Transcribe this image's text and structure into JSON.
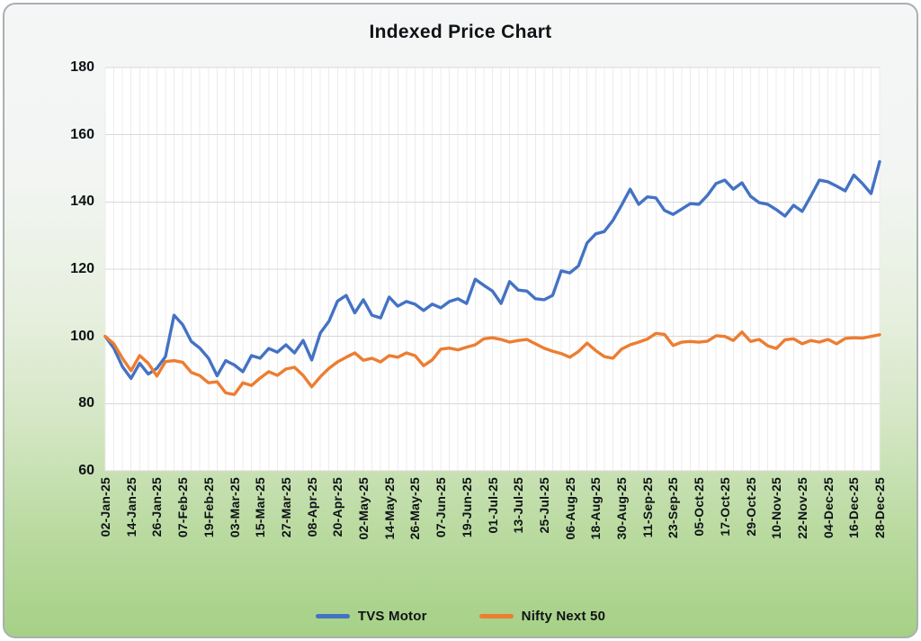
{
  "title": "Indexed Price Chart",
  "chart_data": {
    "type": "line",
    "title": "Indexed Price Chart",
    "ylim": [
      60,
      180
    ],
    "yticks": [
      60,
      80,
      100,
      120,
      140,
      160,
      180
    ],
    "grid": true,
    "legend_position": "bottom",
    "x_label_every_nth_point": 3,
    "x_labels": [
      "02-Jan-25",
      "14-Jan-25",
      "26-Jan-25",
      "07-Feb-25",
      "19-Feb-25",
      "03-Mar-25",
      "15-Mar-25",
      "27-Mar-25",
      "08-Apr-25",
      "20-Apr-25",
      "02-May-25",
      "14-May-25",
      "26-May-25",
      "07-Jun-25",
      "19-Jun-25",
      "01-Jul-25",
      "13-Jul-25",
      "25-Jul-25",
      "06-Aug-25",
      "18-Aug-25",
      "30-Aug-25",
      "11-Sep-25",
      "23-Sep-25",
      "05-Oct-25",
      "17-Oct-25",
      "29-Oct-25",
      "10-Nov-25",
      "22-Nov-25",
      "04-Dec-25",
      "16-Dec-25",
      "28-Dec-25"
    ],
    "series": [
      {
        "name": "TVS Motor",
        "color": "#4472C4",
        "values": [
          100,
          96.5,
          91,
          87.5,
          92,
          88.8,
          90.5,
          94,
          106.3,
          103.5,
          98.5,
          96.5,
          93.5,
          88.3,
          92.8,
          91.5,
          89.5,
          94.3,
          93.5,
          96.4,
          95.3,
          97.5,
          95.1,
          98.8,
          93,
          101,
          104.5,
          110.5,
          112.2,
          107,
          110.9,
          106.3,
          105.5,
          111.7,
          109,
          110.4,
          109.6,
          107.7,
          109.6,
          108.5,
          110.4,
          111.2,
          109.8,
          117,
          115.2,
          113.5,
          109.8,
          116.3,
          113.8,
          113.5,
          111.2,
          110.9,
          112.2,
          119.5,
          118.9,
          121,
          127.8,
          130.5,
          131.2,
          134.5,
          139,
          143.8,
          139.3,
          141.5,
          141.2,
          137.5,
          136.3,
          137.9,
          139.5,
          139.3,
          142,
          145.5,
          146.5,
          143.8,
          145.7,
          141.7,
          139.8,
          139.3,
          137.7,
          135.8,
          139,
          137.2,
          141.7,
          146.5,
          146,
          144.7,
          143.3,
          148,
          145.5,
          142.5,
          152
        ]
      },
      {
        "name": "Nifty Next 50",
        "color": "#ED7D31",
        "values": [
          100,
          97.8,
          93.5,
          89.8,
          94.3,
          92,
          88.2,
          92.5,
          92.8,
          92.3,
          89.3,
          88.3,
          86.2,
          86.5,
          83.2,
          82.7,
          86.2,
          85.4,
          87.6,
          89.5,
          88.4,
          90.3,
          90.8,
          88.4,
          85,
          88,
          90.5,
          92.4,
          93.8,
          95.1,
          92.9,
          93.5,
          92.4,
          94.3,
          93.8,
          95.1,
          94.3,
          91.3,
          93,
          96.2,
          96.5,
          96,
          96.8,
          97.5,
          99.3,
          99.6,
          99.1,
          98.3,
          98.8,
          99.1,
          97.8,
          96.5,
          95.6,
          94.9,
          93.8,
          95.5,
          98,
          95.8,
          94,
          93.5,
          96.2,
          97.5,
          98.3,
          99.2,
          100.9,
          100.6,
          97.3,
          98.3,
          98.5,
          98.3,
          98.6,
          100.2,
          100,
          98.8,
          101.3,
          98.5,
          99.1,
          97.2,
          96.4,
          99,
          99.3,
          97.8,
          98.8,
          98.3,
          99.1,
          97.8,
          99.4,
          99.6,
          99.5,
          100,
          100.5
        ]
      }
    ],
    "style": {
      "plot_background": "#ffffff",
      "h_gridline_color": "#d9d9d9",
      "v_gridline_color": "#ececec",
      "text_color": "#0f1316"
    }
  }
}
